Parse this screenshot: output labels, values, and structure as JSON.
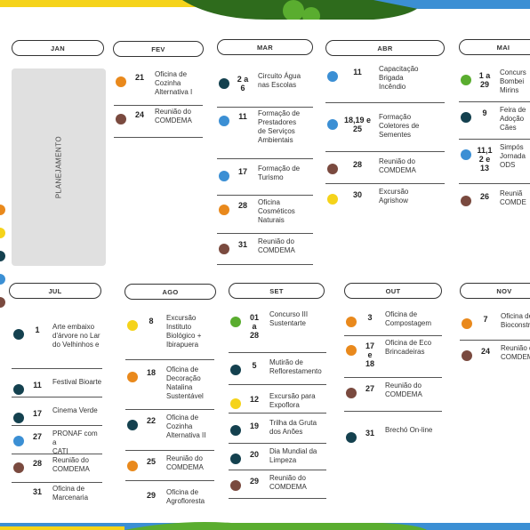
{
  "colors": {
    "green": "#5aad2f",
    "orange": "#e9891c",
    "blue": "#3b8fd4",
    "navy": "#14414f",
    "brown": "#7a4a3f",
    "yellow": "#f5d31a",
    "gray": "#e0e0e0"
  },
  "planejamento": "PLANEJAMENTO",
  "months": {
    "jan": "JAN",
    "fev": "FEV",
    "mar": "MAR",
    "abr": "ABR",
    "mai": "MAI",
    "jul": "JUL",
    "ago": "AGO",
    "set": "SET",
    "out": "OUT",
    "nov": "NOV"
  },
  "events": {
    "fev": [
      {
        "day": "21",
        "text": "Oficina de\nCozinha\nAlternativa I",
        "color": "orange"
      },
      {
        "day": "24",
        "text": "Reunião do\nCOMDEMA",
        "color": "brown"
      }
    ],
    "mar": [
      {
        "day": "2 a\n6",
        "text": "Circuito Água\nnas Escolas",
        "color": "navy"
      },
      {
        "day": "11",
        "text": "Formação de\nPrestadores\nde Serviços\nAmbientais",
        "color": "blue"
      },
      {
        "day": "17",
        "text": "Formação de\nTurismo",
        "color": "blue"
      },
      {
        "day": "28",
        "text": "Oficina\nCosméticos\nNaturais",
        "color": "orange"
      },
      {
        "day": "31",
        "text": "Reunião do\nCOMDEMA",
        "color": "brown"
      }
    ],
    "abr": [
      {
        "day": "11",
        "text": "Capacitação\nBrigada\nIncêndio",
        "color": "blue"
      },
      {
        "day": "18,19 e\n25",
        "text": "Formação\nColetores de\nSementes",
        "color": "blue"
      },
      {
        "day": "28",
        "text": "Reunião do\nCOMDEMA",
        "color": "brown"
      },
      {
        "day": "30",
        "text": "Excursão\nAgrishow",
        "color": "yellow"
      }
    ],
    "mai": [
      {
        "day": "1 a\n29",
        "text": "Concurs\nBombei\nMirins",
        "color": "green"
      },
      {
        "day": "9",
        "text": "Feira de\nAdoção\nCães",
        "color": "navy"
      },
      {
        "day": "11,1\n2 e\n13",
        "text": "Simpós\nJornada\nODS",
        "color": "blue"
      },
      {
        "day": "26",
        "text": "Reuniã\nCOMDE",
        "color": "brown"
      }
    ],
    "jul": [
      {
        "day": "1",
        "text": "Arte embaixo\nd'árvore no Lar\ndo Velhinhos e",
        "color": "navy"
      },
      {
        "day": "11",
        "text": "Festival Bioarte",
        "color": "navy"
      },
      {
        "day": "17",
        "text": "Cinema Verde",
        "color": "navy"
      },
      {
        "day": "27",
        "text": "PRONAF com a\nCATI",
        "color": "blue"
      },
      {
        "day": "28",
        "text": "Reunião do\nCOMDEMA",
        "color": "brown"
      },
      {
        "day": "31",
        "text": "Oficina de\nMarcenaria",
        "color": ""
      }
    ],
    "ago": [
      {
        "day": "8",
        "text": "Excursão\nInstituto\nBiológico +\nIbirapuera",
        "color": "yellow"
      },
      {
        "day": "18",
        "text": "Oficina de\nDecoração\nNatalina\nSustentável",
        "color": "orange"
      },
      {
        "day": "22",
        "text": "Oficina de\nCozinha\nAlternativa II",
        "color": "navy"
      },
      {
        "day": "25",
        "text": "Reunião do\nCOMDEMA",
        "color": "orange"
      },
      {
        "day": "29",
        "text": "Oficina de\nAgrofloresta",
        "color": ""
      }
    ],
    "set": [
      {
        "day": "01\na\n28",
        "text": "Concurso III\nSustentarte",
        "color": "green"
      },
      {
        "day": "5",
        "text": "Mutirão de\nReflorestamento",
        "color": "navy"
      },
      {
        "day": "12",
        "text": "Excursão para\nExpoflora",
        "color": "yellow"
      },
      {
        "day": "19",
        "text": "Trilha da Gruta\ndos Anões",
        "color": "navy"
      },
      {
        "day": "20",
        "text": "Dia Mundial da\nLimpeza",
        "color": "navy"
      },
      {
        "day": "29",
        "text": "Reunião do\nCOMDEMA",
        "color": "brown"
      }
    ],
    "out": [
      {
        "day": "3",
        "text": "Oficina de\nCompostagem",
        "color": "orange"
      },
      {
        "day": "17\ne\n18",
        "text": "Oficina de Eco\nBrincadeiras",
        "color": "orange"
      },
      {
        "day": "27",
        "text": "Reunião do\nCOMDEMA",
        "color": "brown"
      },
      {
        "day": "31",
        "text": "Brechó On-line",
        "color": "navy"
      }
    ],
    "nov": [
      {
        "day": "7",
        "text": "Oficina de\nBioconstru",
        "color": "orange"
      },
      {
        "day": "24",
        "text": "Reunião d\nCOMDEMA",
        "color": "brown"
      }
    ]
  }
}
